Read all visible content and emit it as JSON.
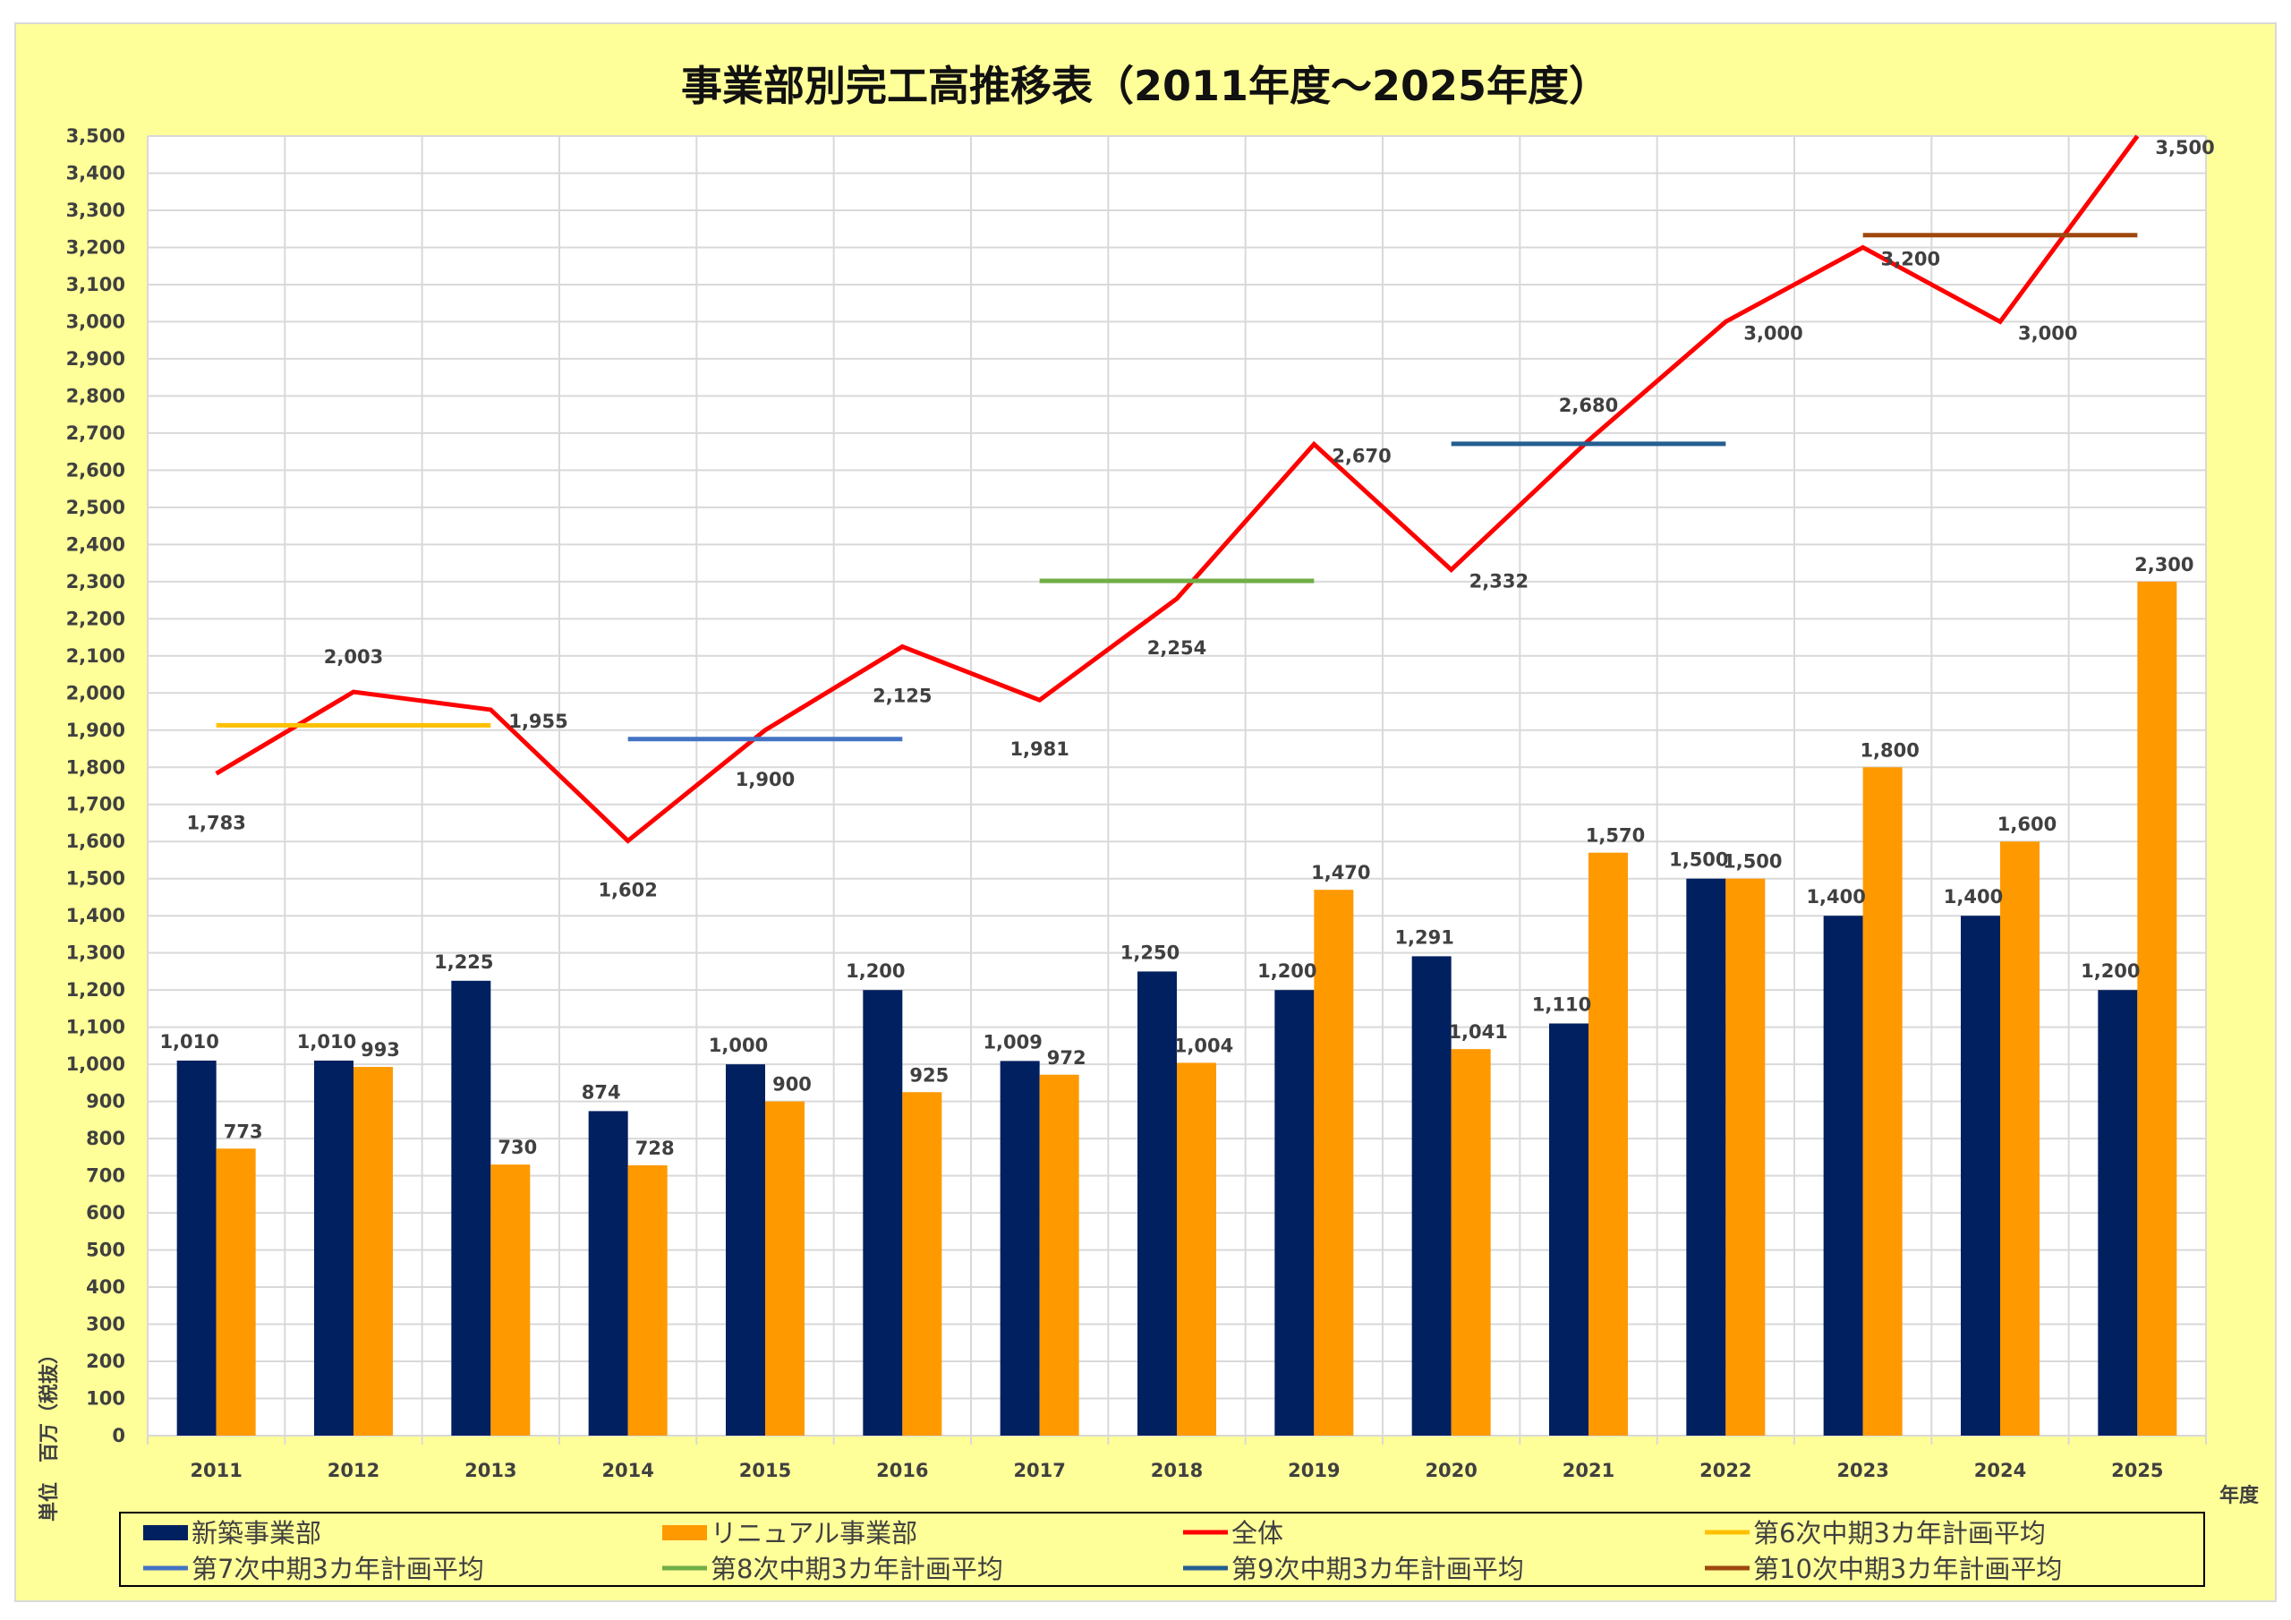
{
  "chart_data": {
    "type": "bar",
    "title": "事業部別完工高推移表（2011年度～2025年度）",
    "xlabel": "年度",
    "ylabel": "単位　百万（税抜）",
    "ylim": [
      0,
      3500
    ],
    "ytick_step": 100,
    "grid": true,
    "legend_placement": "bottom",
    "categories": [
      "2011",
      "2012",
      "2013",
      "2014",
      "2015",
      "2016",
      "2017",
      "2018",
      "2019",
      "2020",
      "2021",
      "2022",
      "2023",
      "2024",
      "2025"
    ],
    "series": [
      {
        "name": "新築事業部",
        "kind": "bar",
        "color": "#002060",
        "values": [
          1010,
          1010,
          1225,
          874,
          1000,
          1200,
          1009,
          1250,
          1200,
          1291,
          1110,
          1500,
          1400,
          1400,
          1200
        ]
      },
      {
        "name": "リニュアル事業部",
        "kind": "bar",
        "color": "#FF9900",
        "values": [
          773,
          993,
          730,
          728,
          900,
          925,
          972,
          1004,
          1470,
          1041,
          1570,
          1500,
          1800,
          1600,
          2300
        ]
      },
      {
        "name": "全体",
        "kind": "line",
        "color": "#FF0000",
        "values": [
          1783,
          2003,
          1955,
          1602,
          1900,
          2125,
          1981,
          2254,
          2670,
          2332,
          2680,
          3000,
          3200,
          3000,
          3500
        ],
        "label_positions": [
          "below",
          "above",
          "right",
          "below",
          "below",
          "below",
          "below",
          "below",
          "right",
          "right",
          "above",
          "right",
          "right",
          "right",
          "right"
        ]
      },
      {
        "name": "第6次中期3カ年計画平均",
        "kind": "segment",
        "color": "#FFC000",
        "value": 1913,
        "span": [
          "2011",
          "2013"
        ]
      },
      {
        "name": "第7次中期3カ年計画平均",
        "kind": "segment",
        "color": "#4472C4",
        "value": 1876,
        "span": [
          "2014",
          "2016"
        ]
      },
      {
        "name": "第8次中期3カ年計画平均",
        "kind": "segment",
        "color": "#70AD47",
        "value": 2302,
        "span": [
          "2017",
          "2019"
        ]
      },
      {
        "name": "第9次中期3カ年計画平均",
        "kind": "segment",
        "color": "#255E91",
        "value": 2671,
        "span": [
          "2020",
          "2022"
        ]
      },
      {
        "name": "第10次中期3カ年計画平均",
        "kind": "segment",
        "color": "#9E480E",
        "value": 3233,
        "span": [
          "2023",
          "2025"
        ]
      }
    ]
  }
}
